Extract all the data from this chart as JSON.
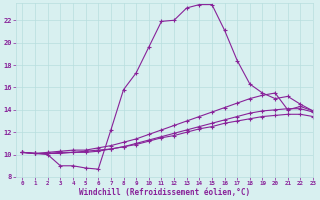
{
  "line1_x": [
    0,
    1,
    2,
    3,
    4,
    5,
    6,
    7,
    8,
    9,
    10,
    11,
    12,
    13,
    14,
    15,
    16,
    17,
    18,
    19,
    20,
    21,
    22,
    23
  ],
  "line1_y": [
    10.2,
    10.1,
    10.0,
    9.0,
    9.0,
    8.8,
    8.7,
    12.2,
    15.8,
    17.3,
    19.6,
    21.9,
    22.0,
    23.1,
    23.4,
    23.4,
    21.1,
    18.4,
    16.3,
    15.5,
    15.0,
    15.2,
    14.5,
    13.9
  ],
  "line2_x": [
    0,
    1,
    2,
    3,
    4,
    5,
    6,
    7,
    8,
    9,
    10,
    11,
    12,
    13,
    14,
    15,
    16,
    17,
    18,
    19,
    20,
    21,
    22,
    23
  ],
  "line2_y": [
    10.2,
    10.1,
    10.2,
    10.3,
    10.4,
    10.4,
    10.6,
    10.8,
    11.1,
    11.4,
    11.8,
    12.2,
    12.6,
    13.0,
    13.4,
    13.8,
    14.2,
    14.6,
    15.0,
    15.3,
    15.5,
    14.0,
    14.3,
    13.9
  ],
  "line3_x": [
    0,
    1,
    2,
    3,
    4,
    5,
    6,
    7,
    8,
    9,
    10,
    11,
    12,
    13,
    14,
    15,
    16,
    17,
    18,
    19,
    20,
    21,
    22,
    23
  ],
  "line3_y": [
    10.2,
    10.1,
    10.1,
    10.2,
    10.2,
    10.3,
    10.4,
    10.5,
    10.7,
    11.0,
    11.3,
    11.6,
    11.9,
    12.2,
    12.5,
    12.8,
    13.1,
    13.4,
    13.7,
    13.9,
    14.0,
    14.1,
    14.1,
    13.8
  ],
  "line4_x": [
    0,
    1,
    2,
    3,
    4,
    5,
    6,
    7,
    8,
    9,
    10,
    11,
    12,
    13,
    14,
    15,
    16,
    17,
    18,
    19,
    20,
    21,
    22,
    23
  ],
  "line4_y": [
    10.2,
    10.1,
    10.1,
    10.1,
    10.2,
    10.2,
    10.3,
    10.5,
    10.7,
    10.9,
    11.2,
    11.5,
    11.7,
    12.0,
    12.3,
    12.5,
    12.8,
    13.0,
    13.2,
    13.4,
    13.5,
    13.6,
    13.6,
    13.4
  ],
  "line_color": "#882299",
  "bg_color": "#d8f0f0",
  "grid_color": "#b8dede",
  "xlabel": "Windchill (Refroidissement éolien,°C)",
  "ylim": [
    8,
    23.5
  ],
  "xlim": [
    -0.5,
    23
  ],
  "xticks": [
    0,
    1,
    2,
    3,
    4,
    5,
    6,
    7,
    8,
    9,
    10,
    11,
    12,
    13,
    14,
    15,
    16,
    17,
    18,
    19,
    20,
    21,
    22,
    23
  ],
  "yticks": [
    8,
    10,
    12,
    14,
    16,
    18,
    20,
    22
  ],
  "marker": "+"
}
